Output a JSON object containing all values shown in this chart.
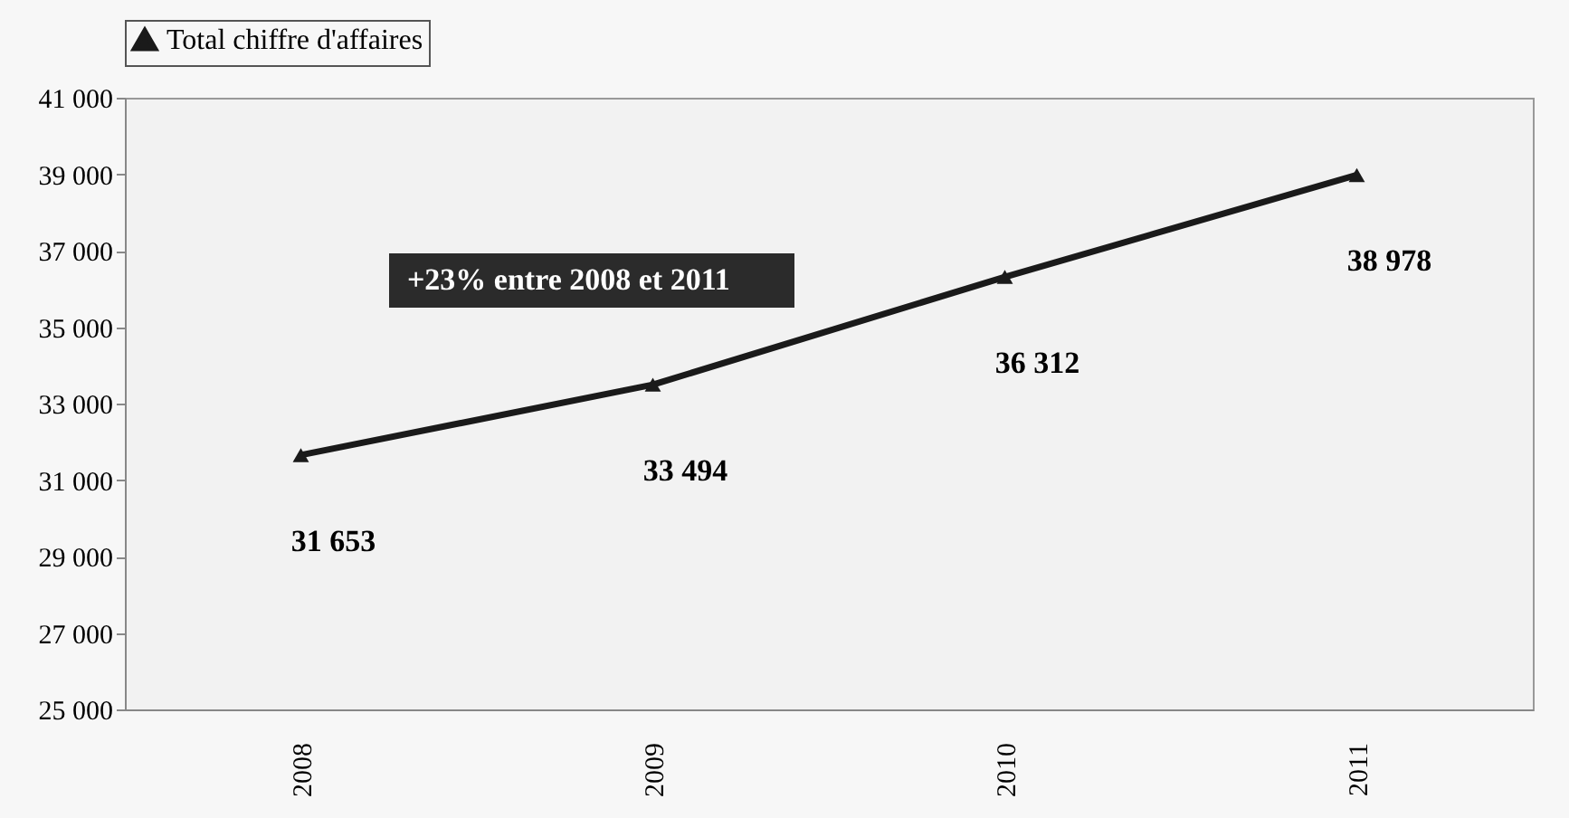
{
  "chart_data": {
    "type": "line",
    "categories": [
      "2008",
      "2009",
      "2010",
      "2011"
    ],
    "series": [
      {
        "name": "Total chiffre d'affaires",
        "color": "#1a1a1a",
        "values": [
          31653,
          33494,
          36312,
          38978
        ],
        "value_labels": [
          "31 653",
          "33 494",
          "36 312",
          "38 978"
        ]
      }
    ],
    "ylim": [
      25000,
      41000
    ],
    "yticks": [
      {
        "value": 25000,
        "label": "25 000"
      },
      {
        "value": 27000,
        "label": "27 000"
      },
      {
        "value": 29000,
        "label": "29 000"
      },
      {
        "value": 31000,
        "label": "31 000"
      },
      {
        "value": 33000,
        "label": "33 000"
      },
      {
        "value": 35000,
        "label": "35 000"
      },
      {
        "value": 37000,
        "label": "37 000"
      },
      {
        "value": 39000,
        "label": "39 000"
      },
      {
        "value": 41000,
        "label": "41 000"
      }
    ],
    "annotations": [
      "+23% entre 2008 et 2011"
    ],
    "legend": "top",
    "marker": "triangle",
    "grid": false
  }
}
